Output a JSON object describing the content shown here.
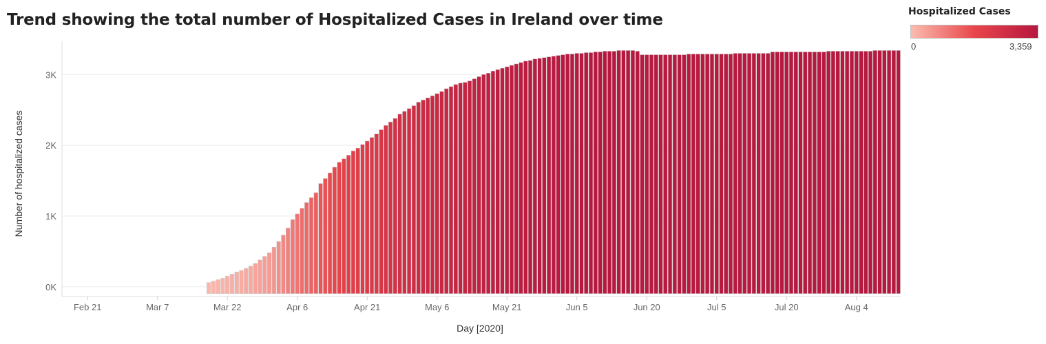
{
  "chart_data": {
    "type": "bar",
    "title": "Trend showing the total number of Hospitalized Cases in Ireland over time",
    "xlabel": "Day [2020]",
    "ylabel": "Number of hospitalized cases",
    "x_range": [
      "2020-02-16",
      "2020-08-14"
    ],
    "ylim": [
      -80,
      3470
    ],
    "y_ticks": [
      0,
      1000,
      2000,
      3000
    ],
    "y_tick_labels": [
      "0K",
      "1K",
      "2K",
      "3K"
    ],
    "x_ticks": [
      "2020-02-21",
      "2020-03-07",
      "2020-03-22",
      "2020-04-06",
      "2020-04-21",
      "2020-05-06",
      "2020-05-21",
      "2020-06-05",
      "2020-06-20",
      "2020-07-05",
      "2020-07-20",
      "2020-08-04"
    ],
    "x_tick_labels": [
      "Feb 21",
      "Mar 7",
      "Mar 22",
      "Apr 6",
      "Apr 21",
      "May 6",
      "May 21",
      "Jun 5",
      "Jun 20",
      "Jul 5",
      "Jul 20",
      "Aug 4"
    ],
    "grid": true,
    "legend": {
      "title": "Hospitalized Cases",
      "position": "top-right",
      "min_label": "0",
      "max_label": "3,359",
      "min": 0,
      "max": 3359
    },
    "colors": {
      "low": "#fbbcb0",
      "mid": "#e8464b",
      "high": "#b6173f",
      "bar_outline": "#c8c8c8",
      "grid": "#eeeeee",
      "axis": "#dddddd"
    },
    "series": [
      {
        "start": "2020-03-18",
        "end": "2020-08-07",
        "values": [
          60,
          80,
          100,
          120,
          150,
          180,
          210,
          230,
          260,
          290,
          330,
          380,
          430,
          480,
          560,
          640,
          730,
          830,
          950,
          1030,
          1110,
          1190,
          1260,
          1330,
          1460,
          1530,
          1610,
          1690,
          1760,
          1810,
          1860,
          1920,
          1960,
          2010,
          2060,
          2110,
          2160,
          2220,
          2280,
          2330,
          2380,
          2440,
          2480,
          2520,
          2560,
          2610,
          2640,
          2670,
          2700,
          2730,
          2760,
          2800,
          2830,
          2860,
          2880,
          2890,
          2910,
          2940,
          2970,
          3000,
          3020,
          3050,
          3070,
          3090,
          3110,
          3130,
          3150,
          3170,
          3190,
          3200,
          3220,
          3230,
          3240,
          3250,
          3260,
          3270,
          3280,
          3290,
          3290,
          3300,
          3300,
          3310,
          3310,
          3320,
          3320,
          3330,
          3330,
          3330,
          3340,
          3340,
          3340,
          3340,
          3330,
          3280,
          3280,
          3280,
          3280,
          3280,
          3280,
          3280,
          3280,
          3280,
          3280,
          3290,
          3290,
          3290,
          3290,
          3290,
          3290,
          3290,
          3290,
          3290,
          3290,
          3300,
          3300,
          3300,
          3300,
          3300,
          3300,
          3300,
          3300,
          3320,
          3320,
          3320,
          3320,
          3320,
          3320,
          3320,
          3320,
          3320,
          3320,
          3320,
          3320,
          3330,
          3330,
          3330,
          3330,
          3330,
          3330,
          3330,
          3330,
          3330,
          3330,
          3340,
          3340,
          3340,
          3340,
          3340,
          3340
        ]
      }
    ]
  }
}
